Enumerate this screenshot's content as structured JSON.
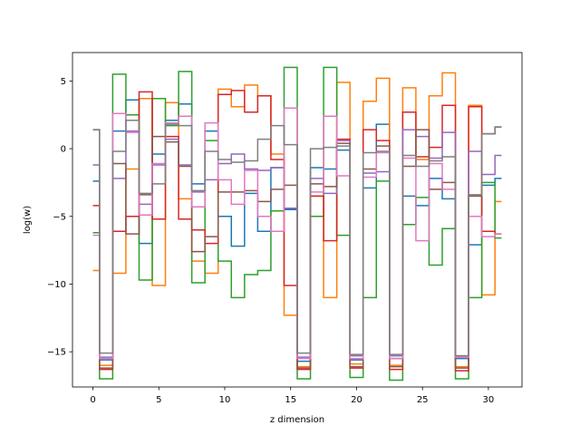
{
  "chart_data": {
    "type": "line",
    "drawstyle": "steps-mid",
    "title": "",
    "xlabel": "z dimension",
    "ylabel": "log(w)",
    "xlim": [
      -1.55,
      32.55
    ],
    "ylim": [
      -17.6,
      7.1
    ],
    "xticks": [
      0,
      5,
      10,
      15,
      20,
      25,
      30
    ],
    "yticks": [
      5,
      0,
      -5,
      -10,
      -15
    ],
    "ytick_labels": [
      "5",
      "0",
      "−5",
      "−10",
      "−15"
    ],
    "grid": false,
    "legend": "none",
    "x": [
      0,
      1,
      2,
      3,
      4,
      5,
      6,
      7,
      8,
      9,
      10,
      11,
      12,
      13,
      14,
      15,
      16,
      17,
      18,
      19,
      20,
      21,
      22,
      23,
      24,
      25,
      26,
      27,
      28,
      29,
      30,
      31
    ],
    "series": [
      {
        "color": "#1f77b4",
        "values": [
          -2.4,
          -15.6,
          1.3,
          3.6,
          -7.0,
          -0.4,
          2.1,
          3.3,
          -2.6,
          1.3,
          -5.0,
          -7.2,
          -3.3,
          -6.1,
          -1.4,
          -4.5,
          -15.7,
          -1.4,
          -1.5,
          -0.1,
          -15.6,
          -2.9,
          1.8,
          -15.5,
          -3.5,
          -4.2,
          -2.2,
          -3.7,
          -15.5,
          -7.1,
          -2.7,
          -2.2
        ]
      },
      {
        "color": "#ff7f0e",
        "values": [
          -9.0,
          -16.0,
          -9.2,
          -1.5,
          3.7,
          -10.1,
          3.4,
          -3.7,
          -8.3,
          -9.2,
          4.4,
          3.1,
          4.7,
          3.9,
          -0.4,
          -12.3,
          -16.1,
          -3.5,
          -11.0,
          4.9,
          -15.9,
          3.5,
          5.2,
          -16.0,
          4.5,
          -0.8,
          3.9,
          5.6,
          -16.1,
          3.2,
          -10.8,
          -3.9
        ]
      },
      {
        "color": "#2ca02c",
        "values": [
          -6.2,
          -17.0,
          5.5,
          2.5,
          -9.7,
          3.7,
          1.7,
          5.7,
          -9.9,
          0.6,
          -8.3,
          -11.0,
          -9.3,
          -9.0,
          -4.6,
          6.0,
          -17.0,
          -5.0,
          6.0,
          -6.4,
          -16.9,
          -11.0,
          -2.4,
          -17.1,
          -5.6,
          -3.6,
          -8.6,
          -5.9,
          -17.0,
          -11.0,
          -2.5,
          -6.6
        ]
      },
      {
        "color": "#d62728",
        "values": [
          -4.2,
          -16.3,
          -6.1,
          -5.0,
          4.2,
          -5.2,
          0.9,
          -5.2,
          -6.0,
          -7.0,
          4.0,
          4.3,
          2.7,
          3.9,
          -0.8,
          -10.1,
          -16.3,
          -3.5,
          -6.8,
          0.7,
          -16.2,
          1.4,
          0.6,
          -16.3,
          2.7,
          -0.6,
          0.1,
          3.2,
          -16.4,
          3.1,
          -6.1,
          -6.3
        ]
      },
      {
        "color": "#9467bd",
        "values": [
          -1.2,
          -15.4,
          -2.2,
          1.3,
          -4.1,
          -1.2,
          0.7,
          -1.2,
          -3.2,
          -2.3,
          -1.1,
          -0.4,
          -1.5,
          -1.6,
          -1.4,
          -4.4,
          -15.4,
          -2.2,
          -3.3,
          0.6,
          -15.3,
          -1.8,
          -1.7,
          -15.3,
          1.4,
          0.9,
          -0.7,
          1.2,
          -15.3,
          -0.2,
          -1.9,
          -0.5
        ]
      },
      {
        "color": "#8c564b",
        "values": [
          1.4,
          -16.2,
          -1.1,
          -6.3,
          -3.4,
          0.9,
          0.5,
          -1.3,
          -7.6,
          -6.5,
          -3.2,
          -3.2,
          -3.1,
          -3.9,
          -3.0,
          -2.7,
          -16.2,
          -2.6,
          -2.8,
          0.4,
          -16.1,
          -1.5,
          0.2,
          -16.1,
          -1.3,
          1.4,
          -3.0,
          -2.5,
          -16.2,
          -3.5,
          1.1,
          1.6
        ]
      },
      {
        "color": "#e377c2",
        "values": [
          -6.4,
          -15.5,
          2.6,
          1.2,
          -4.9,
          -1.1,
          1.9,
          2.4,
          -4.3,
          1.9,
          -2.3,
          -4.1,
          -1.6,
          -5.0,
          -6.1,
          3.0,
          -15.5,
          -3.2,
          2.4,
          -2.0,
          -15.5,
          -2.1,
          -0.3,
          -15.5,
          -0.7,
          -6.8,
          -1.1,
          -3.0,
          -15.4,
          -5.0,
          -6.5,
          -6.3
        ]
      },
      {
        "color": "#7f7f7f",
        "values": [
          1.4,
          -15.1,
          -0.2,
          2.1,
          -3.3,
          -2.6,
          1.8,
          1.7,
          -3.1,
          -0.2,
          -0.8,
          -1.0,
          -0.9,
          0.7,
          1.7,
          0.3,
          -15.1,
          0.0,
          0.1,
          0.2,
          -15.2,
          -0.3,
          -0.2,
          -15.2,
          -0.5,
          -1.3,
          -0.9,
          -0.6,
          -15.3,
          -3.4,
          1.1,
          1.6
        ]
      }
    ]
  }
}
